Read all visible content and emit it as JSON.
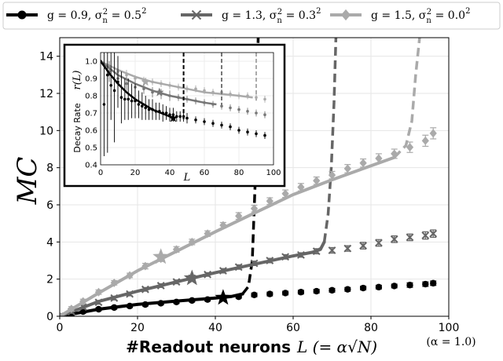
{
  "chart_data": [
    {
      "type": "line",
      "title": "",
      "xlabel": "#Readout neurons",
      "xlabel_math": "L (= α√N)",
      "xlabel_note": "(α = 1.0)",
      "ylabel": "MC",
      "xlim": [
        0,
        100
      ],
      "ylim": [
        0,
        15
      ],
      "xticks": [
        0,
        20,
        40,
        60,
        80,
        100
      ],
      "yticks": [
        0,
        2,
        4,
        6,
        8,
        10,
        12,
        14
      ],
      "grid": true,
      "legend_position": "top (outside)",
      "series": [
        {
          "name": "g = 0.9, σn² = 0.5²",
          "legend_parts": [
            "g = 0.9, σ",
            "n",
            "2",
            " = 0.5",
            "2"
          ],
          "color": "#000000",
          "marker": "circle",
          "x": [
            0,
            3,
            6,
            10,
            14,
            18,
            22,
            26,
            30,
            34,
            38,
            42,
            46,
            50,
            54,
            58,
            62,
            66,
            70,
            74,
            78,
            82,
            86,
            90,
            94,
            96
          ],
          "y": [
            0.0,
            0.12,
            0.25,
            0.38,
            0.47,
            0.55,
            0.63,
            0.7,
            0.77,
            0.85,
            0.9,
            1.0,
            1.05,
            1.15,
            1.2,
            1.25,
            1.3,
            1.35,
            1.4,
            1.45,
            1.52,
            1.57,
            1.63,
            1.68,
            1.73,
            1.78
          ],
          "err": [
            0.08,
            0.08,
            0.08,
            0.08,
            0.08,
            0.08,
            0.08,
            0.08,
            0.08,
            0.08,
            0.08,
            0.08,
            0.08,
            0.1,
            0.1,
            0.1,
            0.1,
            0.1,
            0.1,
            0.1,
            0.1,
            0.1,
            0.1,
            0.12,
            0.12,
            0.12
          ],
          "fit_x": [
            0,
            10,
            20,
            30,
            40,
            44,
            47,
            48.5,
            49.5,
            50.2,
            51
          ],
          "fit_y": [
            0.0,
            0.38,
            0.64,
            0.82,
            0.98,
            1.06,
            1.2,
            1.6,
            3.0,
            7.0,
            15
          ],
          "star": {
            "x": 42,
            "y": 1.0
          }
        },
        {
          "name": "g = 1.3, σn² = 0.3²",
          "legend_parts": [
            "g = 1.3, σ",
            "n",
            "2",
            " = 0.3",
            "2"
          ],
          "color": "#666666",
          "marker": "x",
          "x": [
            0,
            3,
            6,
            10,
            14,
            18,
            22,
            26,
            30,
            34,
            38,
            42,
            46,
            50,
            54,
            58,
            62,
            66,
            70,
            74,
            78,
            82,
            86,
            90,
            94,
            96
          ],
          "y": [
            0.0,
            0.25,
            0.5,
            0.75,
            0.98,
            1.2,
            1.45,
            1.65,
            1.85,
            2.05,
            2.25,
            2.45,
            2.65,
            2.85,
            3.0,
            3.2,
            3.3,
            3.5,
            3.55,
            3.65,
            3.8,
            3.95,
            4.15,
            4.25,
            4.35,
            4.45
          ],
          "err": [
            0.1,
            0.1,
            0.1,
            0.1,
            0.1,
            0.1,
            0.1,
            0.1,
            0.1,
            0.1,
            0.1,
            0.12,
            0.12,
            0.12,
            0.12,
            0.12,
            0.12,
            0.14,
            0.15,
            0.15,
            0.18,
            0.18,
            0.18,
            0.18,
            0.2,
            0.2
          ],
          "fit_x": [
            0,
            10,
            20,
            30,
            40,
            50,
            60,
            65,
            67,
            68,
            69,
            69.8,
            70.5,
            71
          ],
          "fit_y": [
            0.0,
            0.8,
            1.35,
            1.85,
            2.35,
            2.8,
            3.25,
            3.45,
            3.6,
            4.0,
            5.5,
            8.0,
            11.5,
            15
          ],
          "star": {
            "x": 34,
            "y": 2.05
          }
        },
        {
          "name": "g = 1.5, σn² = 0.0²",
          "legend_parts": [
            "g = 1.5, σ",
            "n",
            "2",
            " = 0.0",
            "2"
          ],
          "color": "#aaaaaa",
          "marker": "diamond",
          "x": [
            0,
            3,
            6,
            10,
            14,
            18,
            22,
            26,
            30,
            34,
            38,
            42,
            46,
            50,
            54,
            58,
            62,
            66,
            70,
            74,
            78,
            82,
            86,
            90,
            94,
            96
          ],
          "y": [
            0.0,
            0.4,
            0.8,
            1.3,
            1.8,
            2.2,
            2.7,
            3.1,
            3.6,
            4.0,
            4.45,
            4.9,
            5.4,
            5.8,
            6.2,
            6.6,
            6.95,
            7.3,
            7.6,
            7.95,
            8.25,
            8.5,
            8.75,
            9.1,
            9.45,
            9.85
          ],
          "err": [
            0.1,
            0.12,
            0.12,
            0.12,
            0.12,
            0.12,
            0.15,
            0.15,
            0.15,
            0.15,
            0.15,
            0.15,
            0.18,
            0.18,
            0.18,
            0.2,
            0.2,
            0.2,
            0.2,
            0.22,
            0.22,
            0.25,
            0.25,
            0.28,
            0.3,
            0.3
          ],
          "fit_x": [
            0,
            10,
            20,
            30,
            40,
            50,
            60,
            70,
            80,
            86,
            89,
            90.5,
            91.5,
            92.5
          ],
          "fit_y": [
            0.0,
            1.25,
            2.45,
            3.5,
            4.55,
            5.55,
            6.55,
            7.35,
            8.1,
            8.55,
            9.2,
            10.5,
            13.0,
            15
          ],
          "star": {
            "x": 26,
            "y": 3.2
          }
        }
      ]
    },
    {
      "type": "line",
      "title": "",
      "xlabel": "L",
      "ylabel": "Decay Rate",
      "ylabel_math": "r(L)",
      "xlim": [
        0,
        100
      ],
      "ylim": [
        0.4,
        1.05
      ],
      "xticks": [
        0,
        20,
        40,
        60,
        80,
        100
      ],
      "yticks": [
        0.4,
        0.5,
        0.6,
        0.7,
        0.8,
        0.9,
        1.0
      ],
      "grid": true,
      "series": [
        {
          "color": "#000000",
          "x": [
            0,
            2,
            4,
            6,
            8,
            10,
            12,
            14,
            16,
            18,
            20,
            22,
            24,
            26,
            28,
            30,
            32,
            34,
            36,
            38,
            40,
            42,
            44,
            46,
            48,
            50,
            55,
            60,
            65,
            70,
            75,
            80,
            85,
            90,
            95
          ],
          "y": [
            1.0,
            0.75,
            0.92,
            0.86,
            0.83,
            0.88,
            0.79,
            0.78,
            0.78,
            0.77,
            0.77,
            0.75,
            0.74,
            0.73,
            0.72,
            0.72,
            0.71,
            0.71,
            0.7,
            0.7,
            0.69,
            0.69,
            0.68,
            0.68,
            0.68,
            0.67,
            0.66,
            0.65,
            0.64,
            0.63,
            0.62,
            0.6,
            0.59,
            0.58,
            0.57
          ],
          "err": [
            0.0,
            0.3,
            0.45,
            0.2,
            0.3,
            0.15,
            0.15,
            0.12,
            0.12,
            0.1,
            0.1,
            0.08,
            0.08,
            0.07,
            0.06,
            0.06,
            0.05,
            0.05,
            0.05,
            0.04,
            0.04,
            0.04,
            0.03,
            0.03,
            0.03,
            0.03,
            0.02,
            0.02,
            0.02,
            0.02,
            0.02,
            0.02,
            0.02,
            0.02,
            0.02
          ],
          "fit_x": [
            0,
            5,
            10,
            15,
            20,
            25,
            30,
            35,
            40,
            43
          ],
          "fit_y": [
            1.0,
            0.93,
            0.87,
            0.82,
            0.78,
            0.75,
            0.72,
            0.7,
            0.68,
            0.67
          ],
          "dashed_x": 48,
          "star": {
            "x": 42,
            "y": 0.67
          }
        },
        {
          "color": "#777777",
          "x": [
            5,
            10,
            15,
            20,
            25,
            30,
            35,
            40,
            45,
            50,
            55,
            60,
            65,
            70,
            75,
            80,
            85,
            90,
            95
          ],
          "y": [
            0.94,
            0.9,
            0.87,
            0.85,
            0.84,
            0.82,
            0.81,
            0.8,
            0.79,
            0.78,
            0.77,
            0.76,
            0.75,
            0.74,
            0.73,
            0.72,
            0.71,
            0.7,
            0.69
          ],
          "err": [
            0.06,
            0.05,
            0.04,
            0.04,
            0.03,
            0.03,
            0.03,
            0.03,
            0.02,
            0.02,
            0.02,
            0.02,
            0.02,
            0.02,
            0.02,
            0.02,
            0.02,
            0.02,
            0.02
          ],
          "fit_x": [
            0,
            10,
            20,
            30,
            40,
            50,
            60,
            67
          ],
          "fit_y": [
            1.0,
            0.92,
            0.87,
            0.83,
            0.8,
            0.78,
            0.76,
            0.75
          ],
          "dashed_x": 70,
          "star": {
            "x": 34,
            "y": 0.82
          }
        },
        {
          "color": "#aaaaaa",
          "x": [
            5,
            10,
            15,
            20,
            25,
            30,
            35,
            40,
            45,
            50,
            55,
            60,
            65,
            70,
            75,
            80,
            85,
            90,
            95
          ],
          "y": [
            0.97,
            0.94,
            0.92,
            0.9,
            0.89,
            0.88,
            0.87,
            0.86,
            0.85,
            0.84,
            0.84,
            0.83,
            0.82,
            0.82,
            0.81,
            0.8,
            0.8,
            0.79,
            0.78
          ],
          "err": [
            0.03,
            0.03,
            0.03,
            0.02,
            0.02,
            0.02,
            0.02,
            0.02,
            0.02,
            0.02,
            0.02,
            0.02,
            0.02,
            0.02,
            0.02,
            0.02,
            0.02,
            0.02,
            0.02
          ],
          "fit_x": [
            0,
            10,
            20,
            30,
            40,
            50,
            60,
            70,
            80,
            88
          ],
          "fit_y": [
            1.0,
            0.95,
            0.91,
            0.88,
            0.86,
            0.84,
            0.82,
            0.81,
            0.8,
            0.79
          ],
          "dashed_x": 90,
          "star": {
            "x": 26,
            "y": 0.88
          }
        }
      ]
    }
  ]
}
